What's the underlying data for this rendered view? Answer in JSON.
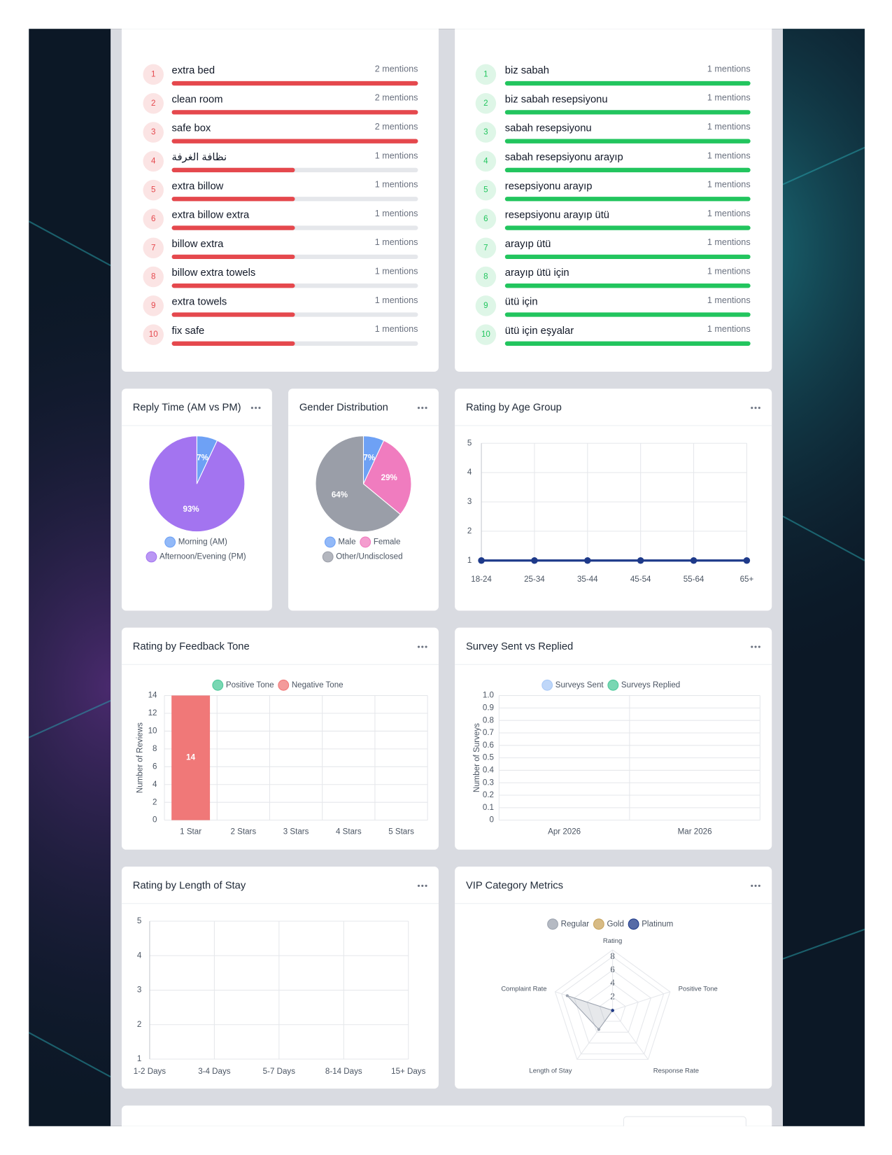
{
  "chart_data": [
    {
      "type": "ranked_bar",
      "categories": [
        "extra bed",
        "clean room",
        "safe box",
        "نظافة الغرفة",
        "extra billow",
        "extra billow extra",
        "billow extra",
        "billow extra towels",
        "extra towels",
        "fix safe"
      ],
      "ranks": [
        1,
        2,
        3,
        4,
        5,
        6,
        7,
        8,
        9,
        10
      ],
      "values": [
        2,
        2,
        2,
        1,
        1,
        1,
        1,
        1,
        1,
        1
      ],
      "value_labels": [
        "2 mentions",
        "2 mentions",
        "2 mentions",
        "1 mentions",
        "1 mentions",
        "1 mentions",
        "1 mentions",
        "1 mentions",
        "1 mentions",
        "1 mentions"
      ],
      "xlim": [
        0,
        2
      ],
      "color": "#e5484d"
    },
    {
      "type": "ranked_bar",
      "categories": [
        "biz sabah",
        "biz sabah resepsiyonu",
        "sabah resepsiyonu",
        "sabah resepsiyonu arayıp",
        "resepsiyonu arayıp",
        "resepsiyonu arayıp ütü",
        "arayıp ütü",
        "arayıp ütü için",
        "ütü için",
        "ütü için eşyalar"
      ],
      "ranks": [
        1,
        2,
        3,
        4,
        5,
        6,
        7,
        8,
        9,
        10
      ],
      "values": [
        1,
        1,
        1,
        1,
        1,
        1,
        1,
        1,
        1,
        1
      ],
      "value_labels": [
        "1 mentions",
        "1 mentions",
        "1 mentions",
        "1 mentions",
        "1 mentions",
        "1 mentions",
        "1 mentions",
        "1 mentions",
        "1 mentions",
        "1 mentions"
      ],
      "xlim": [
        0,
        1
      ],
      "color": "#22c55e"
    },
    {
      "type": "pie",
      "title": "Reply Time (AM vs PM)",
      "categories": [
        "Morning (AM)",
        "Afternoon/Evening (PM)"
      ],
      "values": [
        7,
        93
      ],
      "value_labels": [
        "7%",
        "93%"
      ],
      "colors": [
        "#6ea1f5",
        "#a374f0"
      ]
    },
    {
      "type": "pie",
      "title": "Gender Distribution",
      "categories": [
        "Male",
        "Female",
        "Other/Undisclosed"
      ],
      "values": [
        7,
        29,
        64
      ],
      "value_labels": [
        "7%",
        "29%",
        "64%"
      ],
      "colors": [
        "#6ea1f5",
        "#f07cbf",
        "#9a9ea8"
      ]
    },
    {
      "type": "line",
      "title": "Rating by Age Group",
      "categories": [
        "18-24",
        "25-34",
        "35-44",
        "45-54",
        "55-64",
        "65+"
      ],
      "values": [
        1,
        1,
        1,
        1,
        1,
        1
      ],
      "ylim": [
        1,
        5
      ],
      "yticks": [
        1,
        2,
        3,
        4,
        5
      ],
      "color": "#1e3a8a",
      "grid": true
    },
    {
      "type": "bar",
      "title": "Rating by Feedback Tone",
      "y_label": "Number of Reviews",
      "categories": [
        "1 Star",
        "2 Stars",
        "3 Stars",
        "4 Stars",
        "5 Stars"
      ],
      "series": [
        {
          "name": "Positive Tone",
          "color": "#4cc99a",
          "values": [
            0,
            0,
            0,
            0,
            0
          ]
        },
        {
          "name": "Negative Tone",
          "color": "#f07878",
          "values": [
            14,
            0,
            0,
            0,
            0
          ]
        }
      ],
      "stacked": true,
      "ylim": [
        0,
        14
      ],
      "yticks": [
        0,
        2,
        4,
        6,
        8,
        10,
        12,
        14
      ],
      "grid": true
    },
    {
      "type": "bar",
      "title": "Survey Sent vs Replied",
      "y_label": "Number of Surveys",
      "categories": [
        "Apr 2026",
        "Mar 2026"
      ],
      "series": [
        {
          "name": "Surveys Sent",
          "color": "#a9c9f7",
          "values": [
            0,
            0
          ]
        },
        {
          "name": "Surveys Replied",
          "color": "#4cc99a",
          "values": [
            0,
            0
          ]
        }
      ],
      "stacked": false,
      "ylim": [
        0,
        1
      ],
      "yticks": [
        0,
        0.1,
        0.2,
        0.3,
        0.4,
        0.5,
        0.6,
        0.7,
        0.8,
        0.9,
        {
          "value": 1,
          "label": "1.0"
        }
      ],
      "grid": true
    },
    {
      "type": "line",
      "title": "Rating by Length of Stay",
      "categories": [
        "1-2 Days",
        "3-4 Days",
        "5-7 Days",
        "8-14 Days",
        "15+ Days"
      ],
      "values": [
        null,
        null,
        null,
        null,
        null
      ],
      "ylim": [
        1,
        5
      ],
      "yticks": [
        1,
        2,
        3,
        4,
        5
      ],
      "color": "#1e3a8a",
      "grid": true
    },
    {
      "type": "radar",
      "title": "VIP Category Metrics",
      "axes": [
        "Rating",
        "Positive Tone",
        "Response Rate",
        "Length of Stay",
        "Complaint Rate"
      ],
      "rlim": [
        0,
        9
      ],
      "rticks": [
        2,
        4,
        6,
        8
      ],
      "series": [
        {
          "name": "Regular",
          "color": "#9ca3af",
          "values": [
            0,
            0,
            0,
            3.5,
            7.1
          ]
        },
        {
          "name": "Gold",
          "color": "#c9a45c",
          "values": [
            0,
            0,
            0,
            0,
            0
          ]
        },
        {
          "name": "Platinum",
          "color": "#1e3a8a",
          "values": [
            0,
            0,
            0,
            0,
            0
          ]
        }
      ]
    }
  ]
}
